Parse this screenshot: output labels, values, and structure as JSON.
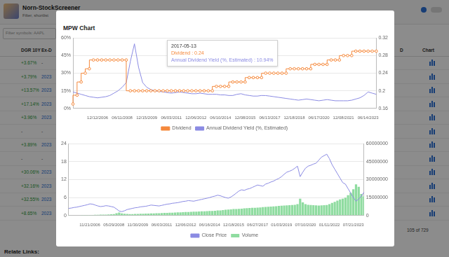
{
  "page": {
    "header": {
      "title": "Norn-StockScreener",
      "subtitle": "Filter, shortlist"
    },
    "filter": "Filter symbols: AAPL",
    "table": {
      "columns_left": [
        "DGR 10Y",
        "Ex-D"
      ],
      "columns_right": [
        "D",
        "Chart"
      ],
      "rows": [
        [
          "+3.67%",
          "-"
        ],
        [
          "+3.79%",
          "2023"
        ],
        [
          "+13.57%",
          "2023"
        ],
        [
          "+17.14%",
          "2023"
        ],
        [
          "+3.96%",
          "2023"
        ],
        [
          "-",
          "-"
        ],
        [
          "+3.89%",
          "2023"
        ],
        [
          "-",
          "-"
        ],
        [
          "+30.06%",
          "2023"
        ],
        [
          "+32.16%",
          "2023"
        ],
        [
          "+32.55%",
          "2023"
        ],
        [
          "+8.65%",
          "2023"
        ]
      ]
    },
    "pagination": "105 of 729",
    "footer": "Relate Links:"
  },
  "modal": {
    "title": "MPW Chart",
    "tooltip": {
      "title": "2017-05-13",
      "lines": [
        {
          "text": "Dividend : 0.24",
          "color": "#f5893c"
        },
        {
          "text": "Annual Dividend Yield (%, Estimated) : 10.94%",
          "color": "#8b8be3"
        }
      ]
    }
  },
  "chart_data": [
    {
      "type": "line",
      "categories": [
        null,
        null,
        null,
        null,
        null,
        null,
        "12/12/2006",
        null,
        null,
        null,
        null,
        null,
        "06/11/2008",
        null,
        null,
        null,
        null,
        null,
        "12/15/2009",
        null,
        null,
        null,
        null,
        null,
        "06/03/2011",
        null,
        null,
        null,
        null,
        null,
        "12/06/2012",
        null,
        null,
        null,
        null,
        null,
        "06/10/2014",
        null,
        null,
        null,
        null,
        null,
        "12/08/2015",
        null,
        null,
        null,
        null,
        null,
        "06/13/2017",
        null,
        null,
        null,
        null,
        null,
        "12/18/2018",
        null,
        null,
        null,
        null,
        null,
        "06/17/2020",
        null,
        null,
        null,
        null,
        null,
        "12/08/2021",
        null,
        null,
        null,
        null,
        null,
        "06/14/2023",
        null,
        null
      ],
      "series": [
        {
          "name": "Dividend",
          "color": "#f5893c",
          "axis": "y2",
          "marker": "circle",
          "line_style": "step",
          "values": [
            0.17,
            0.19,
            0.22,
            0.24,
            0.25,
            0.27,
            0.27,
            0.27,
            0.27,
            0.27,
            0.27,
            0.27,
            0.27,
            0.27,
            0.2,
            0.2,
            0.2,
            0.2,
            0.2,
            0.2,
            0.2,
            0.2,
            0.2,
            0.2,
            0.2,
            0.2,
            0.2,
            0.2,
            0.2,
            0.2,
            0.2,
            0.2,
            0.2,
            0.2,
            0.2,
            0.21,
            0.21,
            0.21,
            0.21,
            0.22,
            0.22,
            0.22,
            0.22,
            0.23,
            0.23,
            0.23,
            0.23,
            0.24,
            0.24,
            0.24,
            0.24,
            0.24,
            0.24,
            0.25,
            0.25,
            0.25,
            0.25,
            0.25,
            0.25,
            0.26,
            0.26,
            0.26,
            0.26,
            0.27,
            0.27,
            0.27,
            0.28,
            0.28,
            0.28,
            0.29,
            0.29,
            0.29,
            0.29,
            0.29,
            0.29
          ]
        },
        {
          "name": "Annual Dividend Yield (%, Estimated)",
          "color": "#8b8be3",
          "axis": "y",
          "marker": "none",
          "line_style": "solid",
          "values": [
            14,
            13,
            12,
            11,
            10,
            9.5,
            9,
            9.5,
            10,
            11,
            13,
            15,
            18,
            22,
            40,
            55,
            35,
            22,
            18,
            16,
            15,
            14.5,
            14,
            13.5,
            13,
            13.5,
            14,
            13.5,
            13,
            12.5,
            12.5,
            13,
            12.5,
            12,
            12,
            12,
            11.5,
            11.5,
            11,
            11,
            12,
            12.5,
            11.5,
            11,
            10.5,
            10.5,
            11,
            10.94,
            10.5,
            10,
            9.5,
            9,
            8.5,
            8,
            7.5,
            7,
            7.5,
            8,
            7.5,
            7,
            6.5,
            7,
            7.5,
            7,
            6.5,
            6.5,
            6.5,
            6.5,
            7,
            8,
            9,
            11,
            14,
            13,
            12
          ]
        }
      ],
      "ylim": [
        0,
        60
      ],
      "yticks": [
        {
          "value": 0,
          "label": "0%"
        },
        {
          "value": 15,
          "label": "15%"
        },
        {
          "value": 30,
          "label": "30%"
        },
        {
          "value": 45,
          "label": "45%"
        },
        {
          "value": 60,
          "label": "60%"
        }
      ],
      "y2lim": [
        0.16,
        0.32
      ],
      "y2ticks": [
        0.16,
        0.2,
        0.24,
        0.28,
        0.32
      ],
      "grid": true,
      "legend": "bottom"
    },
    {
      "type": "line",
      "categories": [
        null,
        null,
        null,
        null,
        null,
        null,
        null,
        null,
        "11/21/2006",
        null,
        null,
        null,
        null,
        null,
        null,
        null,
        null,
        "05/29/2008",
        null,
        null,
        null,
        null,
        null,
        null,
        null,
        null,
        "11/30/2009",
        null,
        null,
        null,
        null,
        null,
        null,
        null,
        null,
        "06/03/2011",
        null,
        null,
        null,
        null,
        null,
        null,
        null,
        null,
        "12/06/2012",
        null,
        null,
        null,
        null,
        null,
        null,
        null,
        null,
        "06/16/2014",
        null,
        null,
        null,
        null,
        null,
        null,
        null,
        null,
        "12/18/2015",
        null,
        null,
        null,
        null,
        null,
        null,
        null,
        null,
        "06/27/2017",
        null,
        null,
        null,
        null,
        null,
        null,
        null,
        null,
        "01/03/2019",
        null,
        null,
        null,
        null,
        null,
        null,
        null,
        null,
        "07/10/2020",
        null,
        null,
        null,
        null,
        null,
        null,
        null,
        null,
        "01/11/2022",
        null,
        null,
        null,
        null,
        null,
        null,
        null,
        null,
        "07/21/2023",
        null,
        null,
        null,
        null
      ],
      "series": [
        {
          "name": "Close Price",
          "color": "#8b8be3",
          "axis": "y",
          "type": "line",
          "marker": "none",
          "line_style": "solid",
          "values": [
            2.4,
            2.5,
            2.7,
            2.8,
            3.0,
            3.2,
            3.4,
            3.6,
            3.9,
            3.8,
            3.5,
            3.2,
            3.0,
            3.1,
            3.3,
            3.2,
            3.0,
            2.8,
            2.2,
            1.5,
            1.3,
            1.6,
            2.0,
            2.2,
            2.4,
            2.6,
            2.7,
            2.9,
            3.0,
            3.1,
            3.3,
            3.5,
            3.4,
            3.3,
            3.2,
            3.4,
            3.6,
            3.8,
            3.9,
            4.1,
            4.2,
            4.3,
            4.5,
            4.7,
            4.8,
            5.0,
            4.9,
            4.8,
            5.0,
            5.2,
            5.4,
            5.6,
            5.8,
            6.0,
            6.3,
            6.5,
            6.8,
            6.6,
            6.3,
            6.0,
            5.8,
            6.2,
            6.8,
            7.5,
            8.2,
            8.6,
            8.4,
            8.8,
            9.0,
            9.4,
            9.8,
            10.2,
            10.0,
            9.8,
            10.5,
            10.8,
            11.2,
            11.5,
            12.0,
            12.4,
            13.0,
            13.8,
            14.5,
            14.8,
            15.2,
            15.8,
            16.5,
            13.0,
            14.5,
            15.8,
            16.5,
            16.8,
            17.2,
            17.5,
            18.5,
            19.5,
            20.0,
            20.5,
            19.0,
            17.0,
            15.5,
            14.0,
            12.5,
            11.0,
            10.5,
            9.0,
            7.5,
            6.0,
            4.8,
            5.5,
            6.5,
            7.8
          ]
        },
        {
          "name": "Volume",
          "color": "#8fdca0",
          "axis": "y2",
          "type": "bar",
          "values": [
            200000,
            250000,
            300000,
            300000,
            350000,
            400000,
            400000,
            450000,
            500000,
            500000,
            600000,
            600000,
            700000,
            700000,
            800000,
            900000,
            1000000,
            1200000,
            2000000,
            2500000,
            1800000,
            1500000,
            1400000,
            1200000,
            1200000,
            1300000,
            1400000,
            1500000,
            1500000,
            1600000,
            1700000,
            1800000,
            1800000,
            1900000,
            2000000,
            2100000,
            2200000,
            2200000,
            2300000,
            2400000,
            2500000,
            2600000,
            2700000,
            2800000,
            3000000,
            3000000,
            3100000,
            3200000,
            3300000,
            3400000,
            3500000,
            3600000,
            3700000,
            3800000,
            3900000,
            4000000,
            4200000,
            4300000,
            4500000,
            4800000,
            5000000,
            5200000,
            5400000,
            5500000,
            5600000,
            5800000,
            6000000,
            6200000,
            6300000,
            6400000,
            6500000,
            6600000,
            6800000,
            7000000,
            7200000,
            7400000,
            7500000,
            7600000,
            7800000,
            8000000,
            8200000,
            8400000,
            8500000,
            8600000,
            8800000,
            9000000,
            9500000,
            14000000,
            11000000,
            9500000,
            9000000,
            8800000,
            8600000,
            8500000,
            8400000,
            8500000,
            8600000,
            8800000,
            9500000,
            10500000,
            11500000,
            12500000,
            13500000,
            14000000,
            15000000,
            17000000,
            19000000,
            22000000,
            26000000,
            24000000,
            18000000,
            16000000
          ]
        }
      ],
      "ylim": [
        0,
        24
      ],
      "yticks": [
        0,
        6,
        12,
        18,
        24
      ],
      "y2lim": [
        0,
        60000000
      ],
      "y2ticks": [
        0,
        15000000,
        30000000,
        45000000,
        60000000
      ],
      "grid": true,
      "legend": "bottom"
    }
  ]
}
